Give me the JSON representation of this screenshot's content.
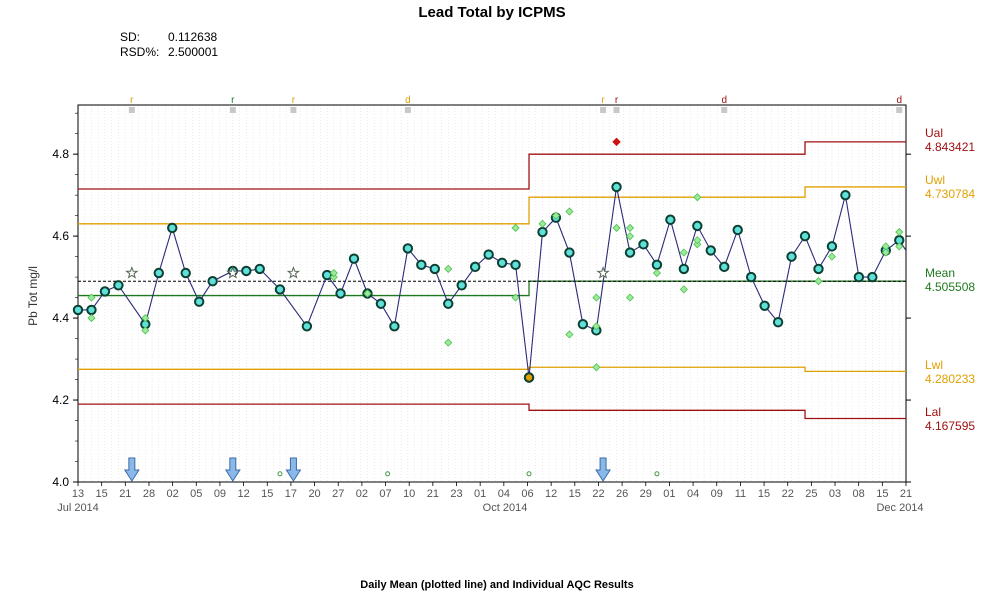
{
  "chart_data": {
    "type": "line",
    "title": "Lead Total by ICPMS",
    "stats": [
      {
        "label": "SD:",
        "value": "0.112638"
      },
      {
        "label": "RSD%:",
        "value": "2.500001"
      }
    ],
    "ylabel": "Pb Tot mg/l",
    "xlabel": "Daily Mean (plotted line) and Individual AQC Results",
    "ylim": [
      4.0,
      4.92
    ],
    "yticks": [
      "4.0",
      "4.2",
      "4.4",
      "4.6",
      "4.8"
    ],
    "ytick_values": [
      4.0,
      4.2,
      4.4,
      4.6,
      4.8
    ],
    "xlim": [
      0,
      121
    ],
    "x_tick_labels": [
      "13",
      "15",
      "21",
      "28",
      "02",
      "05",
      "09",
      "12",
      "15",
      "17",
      "20",
      "27",
      "02",
      "07",
      "10",
      "21",
      "23",
      "01",
      "04",
      "06",
      "12",
      "15",
      "22",
      "26",
      "29",
      "01",
      "04",
      "09",
      "11",
      "15",
      "22",
      "25",
      "03",
      "08",
      "15",
      "21"
    ],
    "month_labels": [
      "Jul 2014",
      "Oct 2014",
      "Dec 2014"
    ],
    "grid": true,
    "series": [
      {
        "key": "mean",
        "values": [
          [
            0,
            4.42
          ],
          [
            2,
            4.42
          ],
          [
            4,
            4.465
          ],
          [
            6,
            4.48
          ],
          [
            10,
            4.385
          ],
          [
            12,
            4.51
          ],
          [
            14,
            4.62
          ],
          [
            16,
            4.51
          ],
          [
            18,
            4.44
          ],
          [
            20,
            4.49
          ],
          [
            23,
            4.515
          ],
          [
            25,
            4.515
          ],
          [
            27,
            4.52
          ],
          [
            30,
            4.47
          ],
          [
            34,
            4.38
          ],
          [
            37,
            4.505
          ],
          [
            39,
            4.46
          ],
          [
            41,
            4.545
          ],
          [
            43,
            4.46
          ],
          [
            45,
            4.435
          ],
          [
            47,
            4.38
          ],
          [
            49,
            4.57
          ],
          [
            51,
            4.53
          ],
          [
            53,
            4.52
          ],
          [
            55,
            4.435
          ],
          [
            57,
            4.48
          ],
          [
            59,
            4.525
          ],
          [
            61,
            4.555
          ],
          [
            63,
            4.535
          ],
          [
            65,
            4.53
          ],
          [
            67,
            4.255
          ],
          [
            69,
            4.61
          ],
          [
            71,
            4.645
          ],
          [
            73,
            4.56
          ],
          [
            75,
            4.385
          ],
          [
            77,
            4.37
          ],
          [
            80,
            4.72
          ],
          [
            82,
            4.56
          ],
          [
            84,
            4.58
          ],
          [
            86,
            4.53
          ],
          [
            88,
            4.64
          ],
          [
            90,
            4.52
          ],
          [
            92,
            4.625
          ],
          [
            94,
            4.565
          ],
          [
            96,
            4.525
          ],
          [
            98,
            4.615
          ],
          [
            100,
            4.5
          ],
          [
            102,
            4.43
          ],
          [
            104,
            4.39
          ],
          [
            106,
            4.55
          ],
          [
            108,
            4.6
          ],
          [
            110,
            4.52
          ],
          [
            112,
            4.575
          ],
          [
            114,
            4.7
          ],
          [
            116,
            4.5
          ],
          [
            118,
            4.5
          ],
          [
            120,
            4.565
          ],
          [
            122,
            4.59
          ],
          [
            123,
            4.565
          ]
        ]
      },
      {
        "key": "individual",
        "values": [
          [
            2,
            4.45
          ],
          [
            2,
            4.4
          ],
          [
            10,
            4.37
          ],
          [
            10,
            4.4
          ],
          [
            38,
            4.5
          ],
          [
            38,
            4.51
          ],
          [
            43,
            4.46
          ],
          [
            55,
            4.52
          ],
          [
            55,
            4.34
          ],
          [
            65,
            4.45
          ],
          [
            65,
            4.62
          ],
          [
            69,
            4.63
          ],
          [
            71,
            4.65
          ],
          [
            73,
            4.66
          ],
          [
            73,
            4.36
          ],
          [
            77,
            4.45
          ],
          [
            77,
            4.38
          ],
          [
            77,
            4.28
          ],
          [
            80,
            4.62
          ],
          [
            82,
            4.62
          ],
          [
            82,
            4.6
          ],
          [
            82,
            4.45
          ],
          [
            86,
            4.51
          ],
          [
            90,
            4.47
          ],
          [
            90,
            4.56
          ],
          [
            92,
            4.695
          ],
          [
            92,
            4.58
          ],
          [
            92,
            4.59
          ],
          [
            110,
            4.49
          ],
          [
            112,
            4.55
          ],
          [
            120,
            4.575
          ],
          [
            120,
            4.56
          ],
          [
            122,
            4.61
          ],
          [
            122,
            4.575
          ]
        ]
      },
      {
        "key": "rejected",
        "values": [
          [
            80,
            4.83
          ]
        ]
      }
    ],
    "control_limits": [
      {
        "label": "Ual",
        "value": "4.843421",
        "color": "#a01010",
        "segments": [
          [
            0,
            67,
            4.715
          ],
          [
            67,
            69,
            4.8
          ],
          [
            69,
            108,
            4.8
          ],
          [
            108,
            110,
            4.83
          ],
          [
            110,
            123,
            4.83
          ]
        ]
      },
      {
        "label": "Uwl",
        "value": "4.730784",
        "color": "#e0a000",
        "segments": [
          [
            0,
            67,
            4.63
          ],
          [
            67,
            69,
            4.695
          ],
          [
            69,
            108,
            4.695
          ],
          [
            108,
            110,
            4.72
          ],
          [
            110,
            123,
            4.72
          ]
        ]
      },
      {
        "label": "Mean",
        "value": "4.505508",
        "color": "#1f7a1f",
        "segments": [
          [
            0,
            67,
            4.455
          ],
          [
            67,
            69,
            4.49
          ],
          [
            69,
            123,
            4.49
          ]
        ]
      },
      {
        "label": "Lwl",
        "value": "4.280233",
        "color": "#e0a000",
        "segments": [
          [
            0,
            67,
            4.275
          ],
          [
            67,
            69,
            4.28
          ],
          [
            69,
            108,
            4.28
          ],
          [
            108,
            110,
            4.27
          ],
          [
            110,
            123,
            4.27
          ]
        ]
      },
      {
        "label": "Lal",
        "value": "4.167595",
        "color": "#a01010",
        "segments": [
          [
            0,
            67,
            4.19
          ],
          [
            67,
            69,
            4.175
          ],
          [
            69,
            108,
            4.175
          ],
          [
            108,
            110,
            4.155
          ],
          [
            110,
            123,
            4.155
          ]
        ]
      }
    ],
    "target_mean": 4.49,
    "stars": [
      [
        8,
        4.51
      ],
      [
        23,
        4.51
      ],
      [
        32,
        4.51
      ],
      [
        78,
        4.51
      ]
    ],
    "arrows": [
      8,
      23,
      32,
      78
    ],
    "small_dots": [
      [
        30,
        4.02
      ],
      [
        46,
        4.02
      ],
      [
        67,
        4.02
      ],
      [
        86,
        4.02
      ]
    ],
    "top_flags": [
      {
        "x": 8,
        "letter": "r",
        "color": "#e0a000"
      },
      {
        "x": 23,
        "letter": "r",
        "color": "#1f7a1f"
      },
      {
        "x": 32,
        "letter": "r",
        "color": "#e0a000"
      },
      {
        "x": 49,
        "letter": "d",
        "color": "#e0a000"
      },
      {
        "x": 78,
        "letter": "r",
        "color": "#e0a000"
      },
      {
        "x": 80,
        "letter": "r",
        "color": "#a01010"
      },
      {
        "x": 96,
        "letter": "d",
        "color": "#a01010"
      },
      {
        "x": 122,
        "letter": "d",
        "color": "#a01010"
      }
    ],
    "colors": {
      "mean_line": "#2a2a7a",
      "mean_marker": "#1a8a9a",
      "individual": "#4cc24c",
      "rejected": "#d01010",
      "arrow": "#8ab8e8"
    }
  }
}
